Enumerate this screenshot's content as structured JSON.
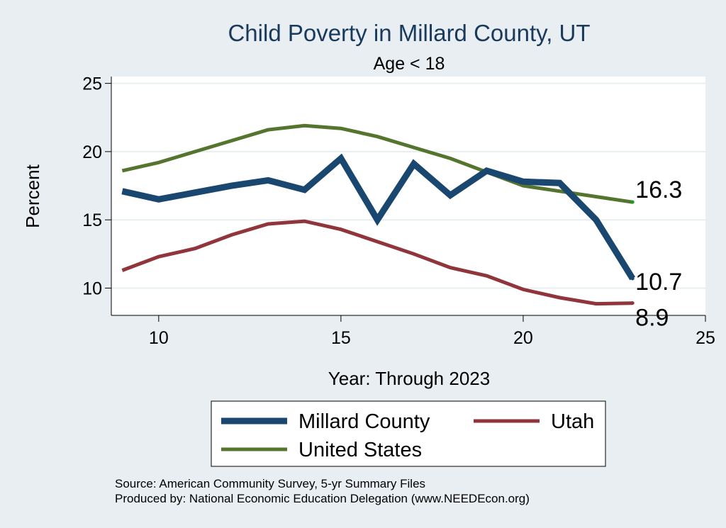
{
  "chart_data": {
    "type": "line",
    "title": "Child Poverty in Millard County, UT",
    "subtitle": "Age < 18",
    "xlabel": "Year: Through 2023",
    "ylabel": "Percent",
    "xlim": [
      8.7,
      25
    ],
    "ylim": [
      8.0,
      25.5
    ],
    "xticks": [
      10,
      15,
      20,
      25
    ],
    "yticks": [
      10,
      15,
      20,
      25
    ],
    "grid": true,
    "legend_position": "bottom",
    "series": [
      {
        "name": "Millard County",
        "color": "#1a476f",
        "x": [
          9,
          10,
          11,
          12,
          13,
          14,
          15,
          16,
          17,
          18,
          19,
          20,
          21,
          22,
          23
        ],
        "values": [
          17.1,
          16.5,
          17.0,
          17.5,
          17.9,
          17.2,
          19.5,
          15.0,
          19.1,
          16.8,
          18.6,
          17.8,
          17.7,
          15.0,
          10.7
        ],
        "end_label": "10.7"
      },
      {
        "name": "Utah",
        "color": "#90353b",
        "x": [
          9,
          10,
          11,
          12,
          13,
          14,
          15,
          16,
          17,
          18,
          19,
          20,
          21,
          22,
          23
        ],
        "values": [
          11.3,
          12.3,
          12.9,
          13.9,
          14.7,
          14.9,
          14.3,
          13.4,
          12.5,
          11.5,
          10.9,
          9.9,
          9.3,
          8.85,
          8.9
        ],
        "end_label": "8.9"
      },
      {
        "name": "United States",
        "color": "#55752f",
        "x": [
          9,
          10,
          11,
          12,
          13,
          14,
          15,
          16,
          17,
          18,
          19,
          20,
          21,
          22,
          23
        ],
        "values": [
          18.6,
          19.2,
          20.0,
          20.8,
          21.6,
          21.9,
          21.7,
          21.1,
          20.3,
          19.5,
          18.5,
          17.5,
          17.1,
          16.7,
          16.3
        ],
        "end_label": "16.3"
      }
    ],
    "notes": [
      "Source: American Community Survey, 5-yr Summary Files",
      "Produced by: National Economic Education Delegation (www.NEEDEcon.org)"
    ]
  },
  "colors": {
    "title": "#1a3a5c",
    "plot_bg": "#ffffff",
    "page_bg": "#e8eef1",
    "grid": "#e6eef0"
  }
}
